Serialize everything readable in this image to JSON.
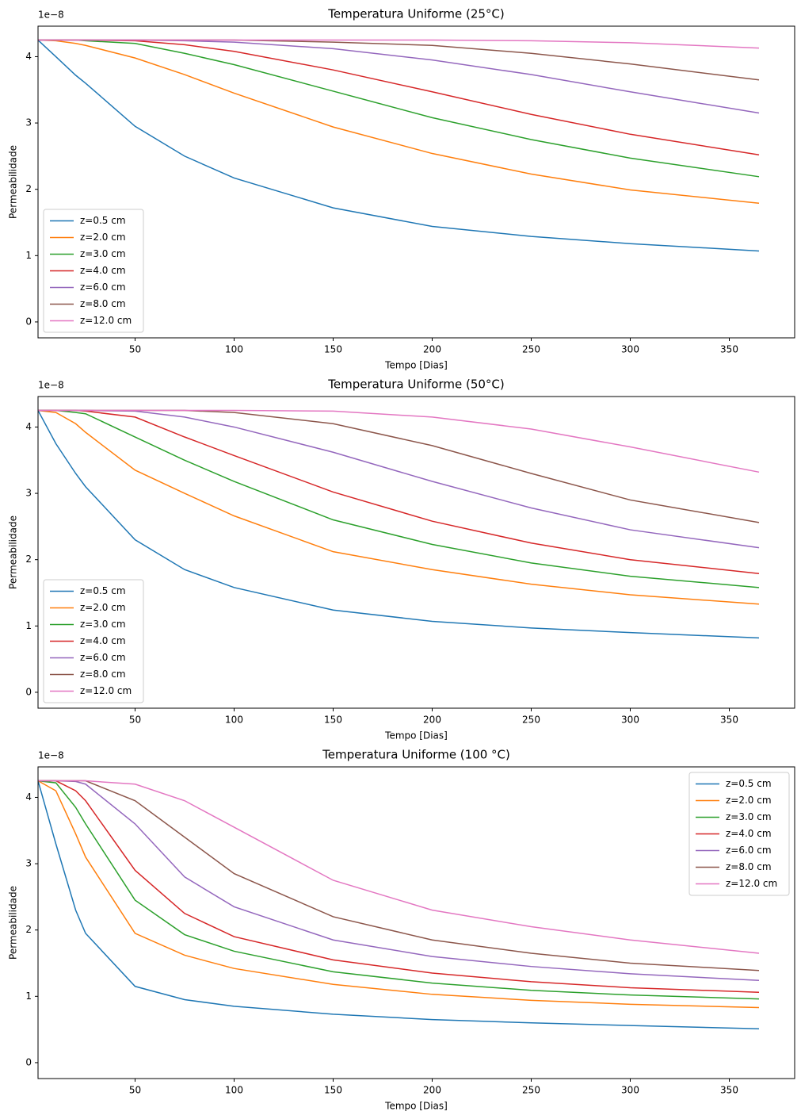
{
  "chart_data": [
    {
      "type": "line",
      "title": "Temperatura Uniforme (25°C)",
      "x_label": "Tempo [Dias]",
      "y_label": "Permeabilidade",
      "offset_label": "1e−8",
      "x": [
        1,
        10,
        20,
        25,
        50,
        75,
        100,
        150,
        200,
        250,
        300,
        365
      ],
      "series": [
        {
          "name": "z=0.5 cm",
          "color": "#1f77b4",
          "values": [
            4.25,
            4.0,
            3.72,
            3.6,
            2.95,
            2.5,
            2.17,
            1.72,
            1.44,
            1.29,
            1.18,
            1.07
          ]
        },
        {
          "name": "z=2.0 cm",
          "color": "#ff7f0e",
          "values": [
            4.25,
            4.24,
            4.2,
            4.17,
            3.98,
            3.73,
            3.45,
            2.94,
            2.54,
            2.23,
            1.99,
            1.79
          ]
        },
        {
          "name": "z=3.0 cm",
          "color": "#2ca02c",
          "values": [
            4.25,
            4.25,
            4.25,
            4.24,
            4.2,
            4.05,
            3.88,
            3.48,
            3.08,
            2.75,
            2.47,
            2.19
          ]
        },
        {
          "name": "z=4.0 cm",
          "color": "#d62728",
          "values": [
            4.25,
            4.25,
            4.25,
            4.25,
            4.24,
            4.18,
            4.08,
            3.8,
            3.47,
            3.13,
            2.83,
            2.52
          ]
        },
        {
          "name": "z=6.0 cm",
          "color": "#9467bd",
          "values": [
            4.25,
            4.25,
            4.25,
            4.25,
            4.25,
            4.24,
            4.22,
            4.12,
            3.95,
            3.73,
            3.47,
            3.15
          ]
        },
        {
          "name": "z=8.0 cm",
          "color": "#8c564b",
          "values": [
            4.25,
            4.25,
            4.25,
            4.25,
            4.25,
            4.25,
            4.25,
            4.22,
            4.17,
            4.05,
            3.89,
            3.65
          ]
        },
        {
          "name": "z=12.0 cm",
          "color": "#e377c2",
          "values": [
            4.25,
            4.25,
            4.25,
            4.25,
            4.25,
            4.25,
            4.25,
            4.25,
            4.25,
            4.24,
            4.21,
            4.13
          ]
        }
      ],
      "xlim": [
        1,
        383
      ],
      "ylim": [
        -0.24,
        4.46
      ],
      "xticks": [
        50,
        100,
        150,
        200,
        250,
        300,
        350
      ],
      "yticks": [
        0,
        1,
        2,
        3,
        4
      ],
      "legend": "lower left"
    },
    {
      "type": "line",
      "title": "Temperatura Uniforme (50°C)",
      "x_label": "Tempo [Dias]",
      "y_label": "Permeabilidade",
      "offset_label": "1e−8",
      "x": [
        1,
        10,
        20,
        25,
        50,
        75,
        100,
        150,
        200,
        250,
        300,
        365
      ],
      "series": [
        {
          "name": "z=0.5 cm",
          "color": "#1f77b4",
          "values": [
            4.25,
            3.75,
            3.3,
            3.1,
            2.3,
            1.85,
            1.58,
            1.24,
            1.07,
            0.97,
            0.9,
            0.82
          ]
        },
        {
          "name": "z=2.0 cm",
          "color": "#ff7f0e",
          "values": [
            4.25,
            4.22,
            4.05,
            3.92,
            3.35,
            3.0,
            2.66,
            2.12,
            1.85,
            1.63,
            1.47,
            1.33
          ]
        },
        {
          "name": "z=3.0 cm",
          "color": "#2ca02c",
          "values": [
            4.25,
            4.25,
            4.22,
            4.2,
            3.85,
            3.5,
            3.18,
            2.6,
            2.23,
            1.95,
            1.75,
            1.58
          ]
        },
        {
          "name": "z=4.0 cm",
          "color": "#d62728",
          "values": [
            4.25,
            4.25,
            4.25,
            4.24,
            4.15,
            3.85,
            3.57,
            3.02,
            2.58,
            2.25,
            2.0,
            1.79
          ]
        },
        {
          "name": "z=6.0 cm",
          "color": "#9467bd",
          "values": [
            4.25,
            4.25,
            4.25,
            4.25,
            4.24,
            4.15,
            4.0,
            3.62,
            3.18,
            2.78,
            2.45,
            2.18
          ]
        },
        {
          "name": "z=8.0 cm",
          "color": "#8c564b",
          "values": [
            4.25,
            4.25,
            4.25,
            4.25,
            4.25,
            4.25,
            4.22,
            4.05,
            3.72,
            3.3,
            2.9,
            2.56
          ]
        },
        {
          "name": "z=12.0 cm",
          "color": "#e377c2",
          "values": [
            4.25,
            4.25,
            4.25,
            4.25,
            4.25,
            4.25,
            4.25,
            4.24,
            4.15,
            3.97,
            3.7,
            3.32
          ]
        }
      ],
      "xlim": [
        1,
        383
      ],
      "ylim": [
        -0.24,
        4.46
      ],
      "xticks": [
        50,
        100,
        150,
        200,
        250,
        300,
        350
      ],
      "yticks": [
        0,
        1,
        2,
        3,
        4
      ],
      "legend": "lower left"
    },
    {
      "type": "line",
      "title": "Temperatura Uniforme (100 °C)",
      "x_label": "Tempo [Dias]",
      "y_label": "Permeabilidade",
      "offset_label": "1e−8",
      "x": [
        1,
        10,
        20,
        25,
        50,
        75,
        100,
        150,
        200,
        250,
        300,
        365
      ],
      "series": [
        {
          "name": "z=0.5 cm",
          "color": "#1f77b4",
          "values": [
            4.25,
            3.3,
            2.3,
            1.95,
            1.15,
            0.95,
            0.85,
            0.73,
            0.65,
            0.6,
            0.56,
            0.51
          ]
        },
        {
          "name": "z=2.0 cm",
          "color": "#ff7f0e",
          "values": [
            4.25,
            4.1,
            3.45,
            3.1,
            1.95,
            1.62,
            1.42,
            1.18,
            1.03,
            0.94,
            0.88,
            0.83
          ]
        },
        {
          "name": "z=3.0 cm",
          "color": "#2ca02c",
          "values": [
            4.25,
            4.22,
            3.85,
            3.6,
            2.45,
            1.93,
            1.68,
            1.37,
            1.2,
            1.09,
            1.02,
            0.96
          ]
        },
        {
          "name": "z=4.0 cm",
          "color": "#d62728",
          "values": [
            4.25,
            4.25,
            4.1,
            3.95,
            2.9,
            2.25,
            1.9,
            1.55,
            1.35,
            1.22,
            1.13,
            1.06
          ]
        },
        {
          "name": "z=6.0 cm",
          "color": "#9467bd",
          "values": [
            4.25,
            4.25,
            4.24,
            4.2,
            3.6,
            2.8,
            2.35,
            1.85,
            1.6,
            1.45,
            1.34,
            1.24
          ]
        },
        {
          "name": "z=8.0 cm",
          "color": "#8c564b",
          "values": [
            4.25,
            4.25,
            4.25,
            4.25,
            3.95,
            3.4,
            2.85,
            2.2,
            1.85,
            1.65,
            1.5,
            1.39
          ]
        },
        {
          "name": "z=12.0 cm",
          "color": "#e377c2",
          "values": [
            4.25,
            4.25,
            4.25,
            4.25,
            4.2,
            3.95,
            3.55,
            2.75,
            2.3,
            2.05,
            1.85,
            1.65
          ]
        }
      ],
      "xlim": [
        1,
        383
      ],
      "ylim": [
        -0.24,
        4.46
      ],
      "xticks": [
        50,
        100,
        150,
        200,
        250,
        300,
        350
      ],
      "yticks": [
        0,
        1,
        2,
        3,
        4
      ],
      "legend": "upper right"
    }
  ]
}
